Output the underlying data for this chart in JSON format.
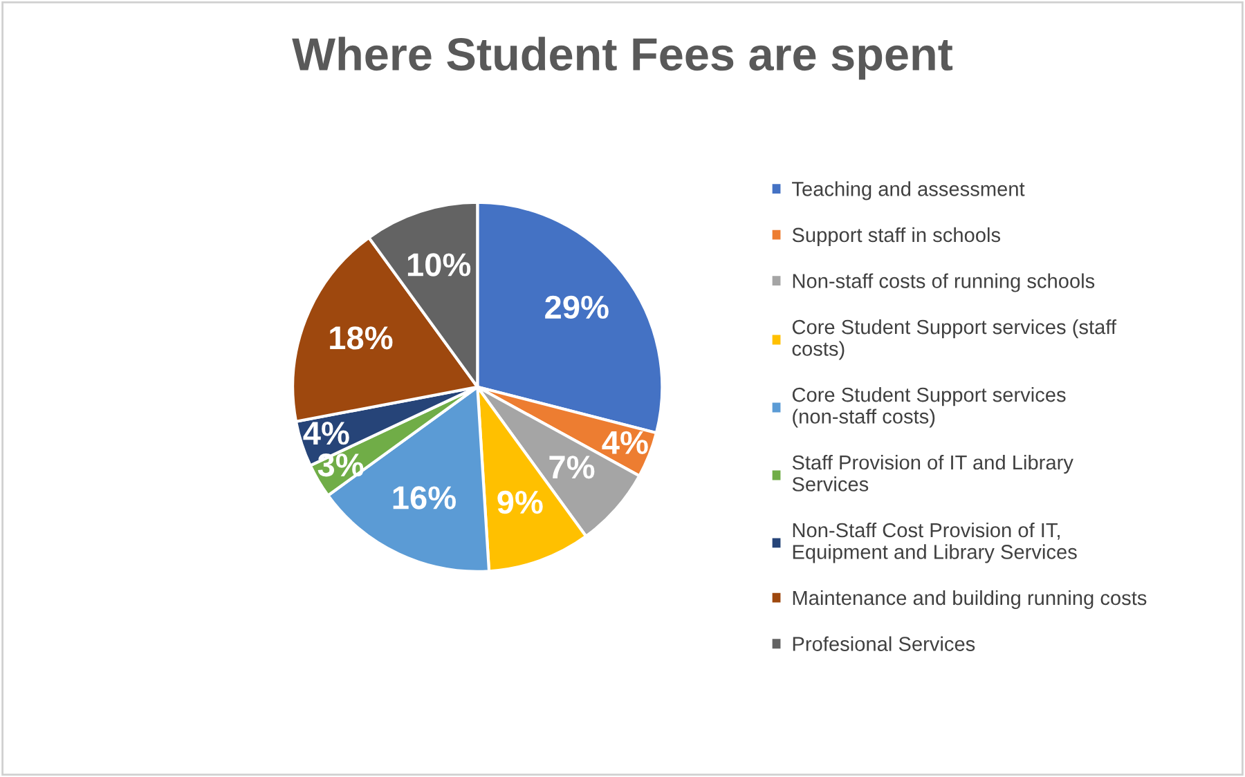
{
  "chart_data": {
    "type": "pie",
    "title": "Where Student Fees are spent",
    "categories": [
      "Teaching and assessment",
      "Support staff in schools",
      "Non-staff costs of running schools",
      "Core Student Support services (staff costs)",
      "Core Student Support services (non-staff costs)",
      "Staff Provision of IT and Library Services",
      "Non-Staff Cost Provision of IT, Equipment and Library Services",
      "Maintenance and building running costs",
      "Profesional Services"
    ],
    "values": [
      29,
      4,
      7,
      9,
      16,
      3,
      4,
      18,
      10
    ],
    "colors": [
      "#4472c4",
      "#ed7d31",
      "#a5a5a5",
      "#ffc000",
      "#5b9bd5",
      "#70ad47",
      "#264478",
      "#9e480e",
      "#636363"
    ],
    "value_labels": [
      "29%",
      "4%",
      "7%",
      "9%",
      "16%",
      "3%",
      "4%",
      "18%",
      "10%"
    ],
    "legend": "right"
  }
}
